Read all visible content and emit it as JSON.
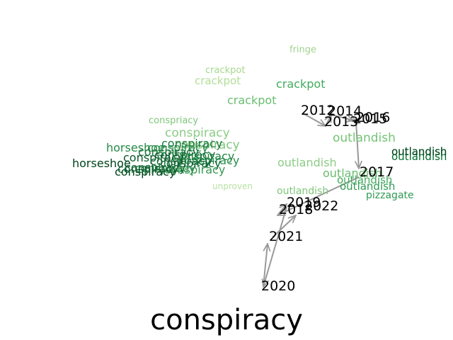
{
  "title": "conspiracy",
  "years": [
    "2012",
    "2013",
    "2014",
    "2015",
    "2016",
    "2017",
    "2018",
    "2019",
    "2020",
    "2021",
    "2022"
  ],
  "words": [
    {
      "text": "fringe",
      "color": "#9fd48f"
    },
    {
      "text": "crackpot",
      "color": "#a5d88f"
    },
    {
      "text": "crackpot",
      "color": "#b2de97"
    },
    {
      "text": "crackpot",
      "color": "#6abd6f"
    },
    {
      "text": "crackpot",
      "color": "#41ab5d"
    },
    {
      "text": "conspriacy",
      "color": "#7ec679"
    },
    {
      "text": "conspiracy",
      "color": "#8ccd85"
    },
    {
      "text": "conspiracy",
      "color": "#7fc67b"
    },
    {
      "text": "horseshoe",
      "color": "#238b45"
    },
    {
      "text": "conspiracy",
      "color": "#1a7a3c"
    },
    {
      "text": "conspiracy",
      "color": "#2e8f4e"
    },
    {
      "text": "conspiracy",
      "color": "#157238"
    },
    {
      "text": "conspiracy",
      "color": "#0f6b33"
    },
    {
      "text": "conspiracy",
      "color": "#1f8541"
    },
    {
      "text": "conspiracy",
      "color": "#2a9150"
    },
    {
      "text": "conspiracy",
      "color": "#0a5a2b"
    },
    {
      "text": "conspiracy",
      "color": "#176f38"
    },
    {
      "text": "conspiracy",
      "color": "#0d6432"
    },
    {
      "text": "horseshoe",
      "color": "#00441b"
    },
    {
      "text": "conspiracy",
      "color": "#00441b"
    },
    {
      "text": "conspiracy",
      "color": "#0b5d2e"
    },
    {
      "text": "conspiracy",
      "color": "#1b7c3f"
    },
    {
      "text": "conspiracy",
      "color": "#35984f"
    },
    {
      "text": "conspiracy",
      "color": "#0c5f2f"
    },
    {
      "text": "unproven",
      "color": "#b8e2a3"
    },
    {
      "text": "outlandish",
      "color": "#8ccd85"
    },
    {
      "text": "outlandish",
      "color": "#74c476"
    },
    {
      "text": "outlandish",
      "color": "#6abd6f"
    },
    {
      "text": "outlandish",
      "color": "#41ab5d"
    },
    {
      "text": "outlandish",
      "color": "#2e9a53"
    },
    {
      "text": "outlandish",
      "color": "#1f8541"
    },
    {
      "text": "outlandish",
      "color": "#006d2c"
    },
    {
      "text": "outlandish",
      "color": "#00441b"
    },
    {
      "text": "outlandish",
      "color": "#7fc67b"
    },
    {
      "text": "pizzagate",
      "color": "#2e9a53"
    }
  ]
}
